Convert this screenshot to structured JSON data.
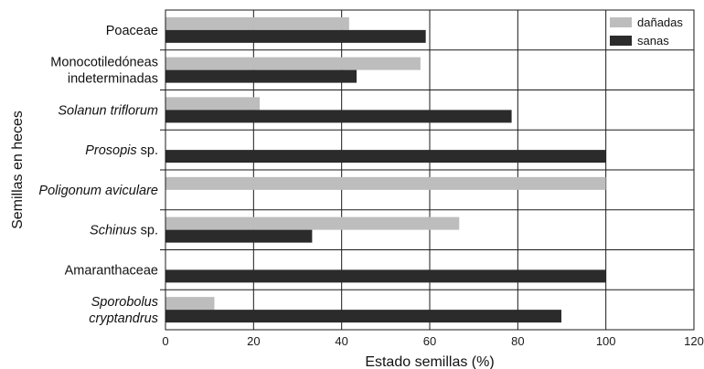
{
  "chart_data": {
    "type": "bar",
    "orientation": "horizontal",
    "title": "",
    "xlabel": "Estado semillas (%)",
    "ylabel": "Semillas en heces",
    "xlim": [
      0,
      120
    ],
    "xticks": [
      0,
      20,
      40,
      60,
      80,
      100,
      120
    ],
    "grid": true,
    "legend_position": "top-right",
    "categories": [
      {
        "lines": [
          {
            "parts": [
              {
                "text": "Poaceae",
                "italic": false
              }
            ]
          }
        ]
      },
      {
        "lines": [
          {
            "parts": [
              {
                "text": "Monocotiledóneas",
                "italic": false
              }
            ]
          },
          {
            "parts": [
              {
                "text": "indeterminadas",
                "italic": false
              }
            ]
          }
        ]
      },
      {
        "lines": [
          {
            "parts": [
              {
                "text": "Solanun triflorum",
                "italic": true
              }
            ]
          }
        ]
      },
      {
        "lines": [
          {
            "parts": [
              {
                "text": "Prosopis",
                "italic": true
              },
              {
                "text": " sp.",
                "italic": false
              }
            ]
          }
        ]
      },
      {
        "lines": [
          {
            "parts": [
              {
                "text": "Poligonum aviculare",
                "italic": true
              }
            ]
          }
        ]
      },
      {
        "lines": [
          {
            "parts": [
              {
                "text": "Schinus",
                "italic": true
              },
              {
                "text": " sp.",
                "italic": false
              }
            ]
          }
        ]
      },
      {
        "lines": [
          {
            "parts": [
              {
                "text": "Amaranthaceae",
                "italic": false
              }
            ]
          }
        ]
      },
      {
        "lines": [
          {
            "parts": [
              {
                "text": "Sporobolus",
                "italic": true
              }
            ]
          },
          {
            "parts": [
              {
                "text": "cryptandrus",
                "italic": true
              }
            ]
          }
        ]
      }
    ],
    "series": [
      {
        "name": "dañadas",
        "color": "#bdbdbd",
        "values": [
          41.7,
          57.9,
          21.4,
          0,
          100,
          66.7,
          0,
          11.1
        ]
      },
      {
        "name": "sanas",
        "color": "#2b2b2b",
        "values": [
          59.1,
          43.4,
          78.6,
          100,
          0,
          33.3,
          100,
          89.9
        ]
      }
    ]
  }
}
